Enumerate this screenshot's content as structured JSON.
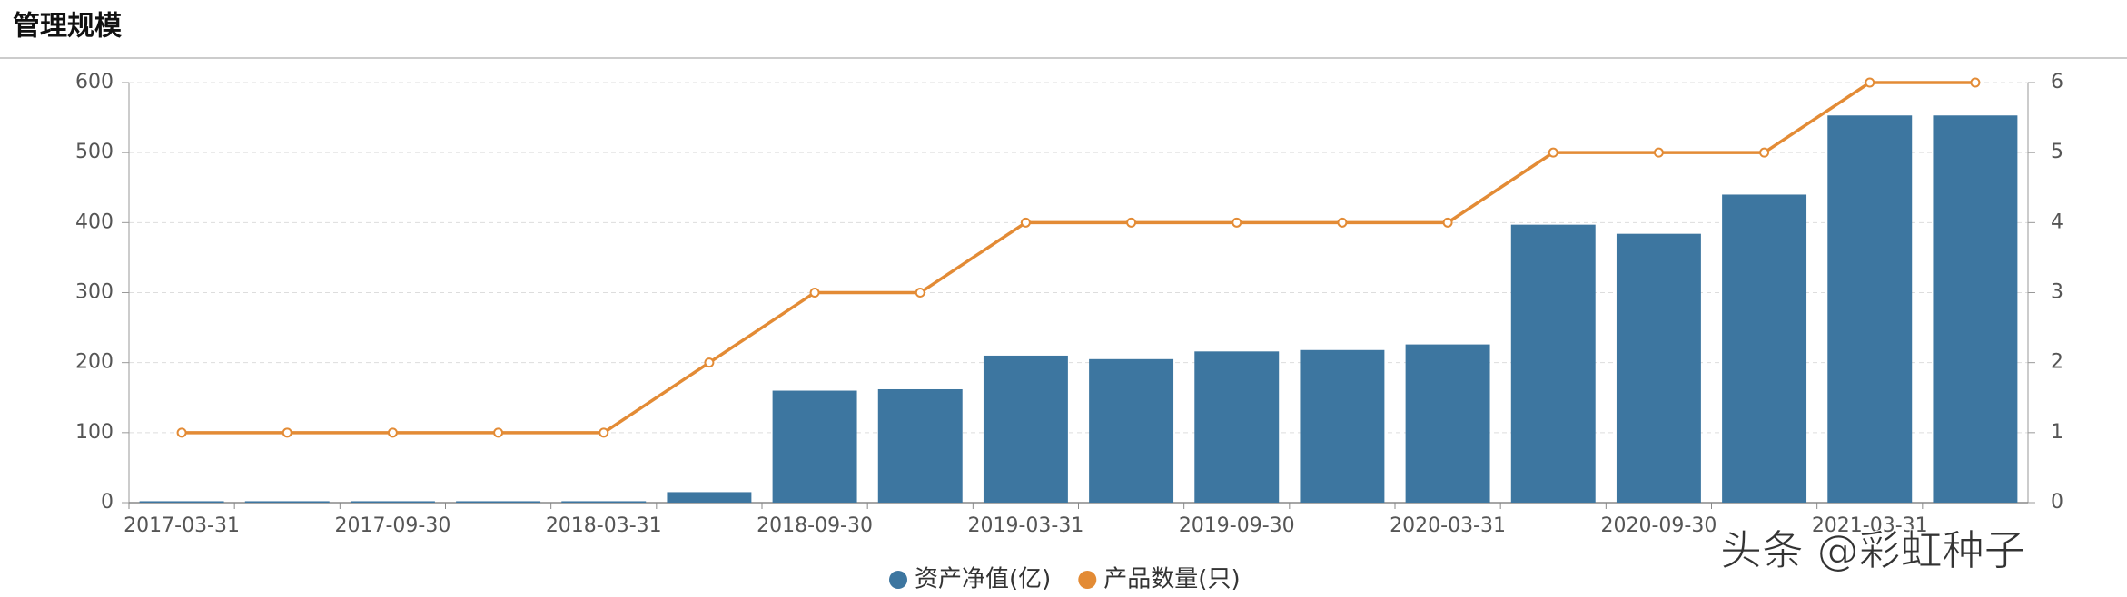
{
  "title": "管理规模",
  "watermark": "头条 @彩虹种子",
  "chart_data": {
    "type": "bar-line",
    "categories": [
      "2017-03-31",
      null,
      "2017-09-30",
      null,
      "2018-03-31",
      null,
      "2018-09-30",
      null,
      "2019-03-31",
      null,
      "2019-09-30",
      null,
      "2020-03-31",
      null,
      "2020-09-30",
      null,
      "2021-03-31",
      null
    ],
    "series": [
      {
        "name": "资产净值(亿)",
        "color": "#3d76a0",
        "kind": "bar",
        "values": [
          2,
          2,
          2,
          2,
          2,
          15,
          160,
          162,
          210,
          205,
          216,
          218,
          226,
          397,
          384,
          440,
          553,
          553
        ]
      },
      {
        "name": "产品数量(只)",
        "color": "#e38b35",
        "kind": "line",
        "axis": "y2",
        "values": [
          1,
          1,
          1,
          1,
          1,
          2,
          3,
          3,
          4,
          4,
          4,
          4,
          4,
          5,
          5,
          5,
          6,
          6
        ]
      }
    ],
    "ylim": [
      0,
      600
    ],
    "yticks": [
      0,
      100,
      200,
      300,
      400,
      500,
      600
    ],
    "y2lim": [
      0,
      6
    ],
    "y2ticks": [
      0,
      1,
      2,
      3,
      4,
      5,
      6
    ],
    "grid": true
  }
}
